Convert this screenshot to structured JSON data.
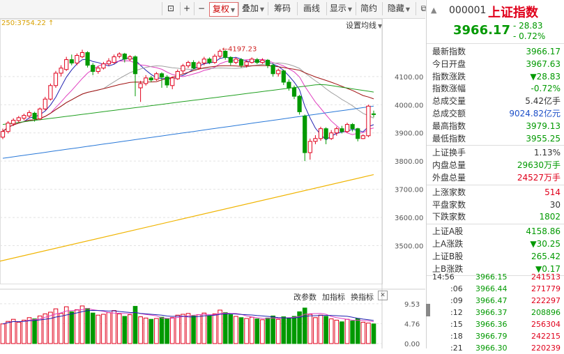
{
  "toolbar": {
    "items": [
      {
        "label": "⊡",
        "has_caret": false,
        "selected": false
      },
      {
        "label": "+",
        "has_caret": false,
        "selected": false
      },
      {
        "label": "−",
        "has_caret": false,
        "selected": false
      },
      {
        "label": "复权",
        "has_caret": true,
        "selected": true
      },
      {
        "label": "叠加",
        "has_caret": true,
        "selected": false
      },
      {
        "label": "筹码",
        "has_caret": false,
        "selected": false
      },
      {
        "label": "画线",
        "has_caret": false,
        "selected": false
      },
      {
        "label": "显示",
        "has_caret": true,
        "selected": false
      },
      {
        "label": "简约",
        "has_caret": false,
        "selected": false
      },
      {
        "label": "隐藏",
        "has_caret": true,
        "selected": false
      },
      {
        "label": "⧉",
        "has_caret": false,
        "selected": false
      }
    ]
  },
  "ma_label": "250:3754.22 ↑",
  "ma_settings_label": "设置均线",
  "peak_annotation": "←4197.23",
  "indicator_links": {
    "edit_params": "改参数",
    "add_indicator": "加指标",
    "switch_indicator": "换指标"
  },
  "close_icon": "✕",
  "scroll_up_icon": "▲",
  "scroll_down_icon": "▼",
  "colors": {
    "up": "#e0001b",
    "down": "#009900",
    "ma5": "#2020b0",
    "ma10": "#e040c0",
    "ma20": "#a0a0a0",
    "ma30": "#a01010",
    "ma60": "#20a020",
    "ma120": "#2878d8",
    "ma250": "#f0b400"
  },
  "chart_data": {
    "type": "candlestick",
    "price_axis": {
      "ticks": [
        4100.0,
        4000.0,
        3900.0,
        3800.0,
        3700.0,
        3600.0,
        3500.0
      ],
      "ylim": [
        3390,
        4290
      ]
    },
    "volume_axis": {
      "ticks": [
        "9.53",
        "4.76",
        "0.00"
      ],
      "unit": "百万",
      "ylim": [
        0,
        10.5
      ]
    },
    "candles": [
      {
        "o": 3885,
        "c": 3905,
        "h": 3915,
        "l": 3878,
        "v": 4.7
      },
      {
        "o": 3905,
        "c": 3935,
        "h": 3942,
        "l": 3898,
        "v": 5.3
      },
      {
        "o": 3932,
        "c": 3945,
        "h": 3952,
        "l": 3925,
        "v": 5.8
      },
      {
        "o": 3944,
        "c": 3954,
        "h": 3960,
        "l": 3938,
        "v": 5.1
      },
      {
        "o": 3952,
        "c": 3962,
        "h": 3968,
        "l": 3945,
        "v": 5.6
      },
      {
        "o": 3960,
        "c": 3972,
        "h": 3980,
        "l": 3952,
        "v": 6.2
      },
      {
        "o": 3970,
        "c": 3950,
        "h": 3975,
        "l": 3940,
        "v": 5.9
      },
      {
        "o": 3950,
        "c": 3985,
        "h": 3990,
        "l": 3945,
        "v": 6.6
      },
      {
        "o": 3985,
        "c": 4020,
        "h": 4028,
        "l": 3980,
        "v": 7.1
      },
      {
        "o": 4020,
        "c": 4068,
        "h": 4075,
        "l": 4015,
        "v": 7.5
      },
      {
        "o": 4068,
        "c": 4112,
        "h": 4120,
        "l": 4060,
        "v": 8.3
      },
      {
        "o": 4112,
        "c": 4130,
        "h": 4140,
        "l": 4100,
        "v": 7.2
      },
      {
        "o": 4125,
        "c": 4160,
        "h": 4170,
        "l": 4120,
        "v": 8.8
      },
      {
        "o": 4160,
        "c": 4148,
        "h": 4178,
        "l": 4140,
        "v": 7.6
      },
      {
        "o": 4148,
        "c": 4175,
        "h": 4182,
        "l": 4140,
        "v": 8.1
      },
      {
        "o": 4170,
        "c": 4185,
        "h": 4195,
        "l": 4165,
        "v": 9.0
      },
      {
        "o": 4185,
        "c": 4140,
        "h": 4190,
        "l": 4132,
        "v": 8.4
      },
      {
        "o": 4140,
        "c": 4118,
        "h": 4148,
        "l": 4105,
        "v": 7.3
      },
      {
        "o": 4118,
        "c": 4130,
        "h": 4138,
        "l": 4110,
        "v": 6.8
      },
      {
        "o": 4130,
        "c": 4145,
        "h": 4152,
        "l": 4125,
        "v": 7.0
      },
      {
        "o": 4145,
        "c": 4155,
        "h": 4165,
        "l": 4138,
        "v": 7.4
      },
      {
        "o": 4150,
        "c": 4170,
        "h": 4178,
        "l": 4145,
        "v": 7.9
      },
      {
        "o": 4172,
        "c": 4180,
        "h": 4186,
        "l": 4165,
        "v": 7.1
      },
      {
        "o": 4180,
        "c": 4162,
        "h": 4184,
        "l": 4150,
        "v": 6.5
      },
      {
        "o": 4162,
        "c": 4170,
        "h": 4176,
        "l": 4155,
        "v": 6.9
      },
      {
        "o": 4170,
        "c": 4110,
        "h": 4175,
        "l": 4030,
        "v": 8.9
      },
      {
        "o": 4060,
        "c": 4075,
        "h": 4085,
        "l": 4010,
        "v": 6.4
      },
      {
        "o": 4075,
        "c": 4095,
        "h": 4105,
        "l": 4068,
        "v": 6.1
      },
      {
        "o": 4095,
        "c": 4088,
        "h": 4102,
        "l": 4080,
        "v": 5.8
      },
      {
        "o": 4090,
        "c": 4110,
        "h": 4116,
        "l": 4085,
        "v": 6.0
      },
      {
        "o": 4110,
        "c": 4098,
        "h": 4115,
        "l": 4060,
        "v": 6.3
      },
      {
        "o": 4098,
        "c": 4070,
        "h": 4105,
        "l": 4060,
        "v": 5.9
      },
      {
        "o": 4068,
        "c": 4095,
        "h": 4100,
        "l": 4055,
        "v": 6.2
      },
      {
        "o": 4092,
        "c": 4118,
        "h": 4125,
        "l": 4088,
        "v": 6.8
      },
      {
        "o": 4120,
        "c": 4138,
        "h": 4145,
        "l": 4110,
        "v": 7.0
      },
      {
        "o": 4138,
        "c": 4150,
        "h": 4156,
        "l": 4130,
        "v": 7.2
      },
      {
        "o": 4150,
        "c": 4130,
        "h": 4158,
        "l": 4125,
        "v": 6.6
      },
      {
        "o": 4130,
        "c": 4148,
        "h": 4155,
        "l": 4124,
        "v": 6.9
      },
      {
        "o": 4148,
        "c": 4162,
        "h": 4170,
        "l": 4140,
        "v": 7.3
      },
      {
        "o": 4162,
        "c": 4150,
        "h": 4168,
        "l": 4144,
        "v": 6.7
      },
      {
        "o": 4150,
        "c": 4172,
        "h": 4180,
        "l": 4145,
        "v": 7.1
      },
      {
        "o": 4172,
        "c": 4190,
        "h": 4197,
        "l": 4165,
        "v": 8.0
      },
      {
        "o": 4190,
        "c": 4168,
        "h": 4194,
        "l": 4160,
        "v": 7.4
      },
      {
        "o": 4168,
        "c": 4150,
        "h": 4172,
        "l": 4140,
        "v": 6.9
      },
      {
        "o": 4150,
        "c": 4162,
        "h": 4168,
        "l": 4144,
        "v": 6.5
      },
      {
        "o": 4160,
        "c": 4140,
        "h": 4165,
        "l": 4132,
        "v": 6.2
      },
      {
        "o": 4140,
        "c": 4152,
        "h": 4158,
        "l": 4132,
        "v": 6.0
      },
      {
        "o": 4150,
        "c": 4162,
        "h": 4168,
        "l": 4146,
        "v": 6.3
      },
      {
        "o": 4160,
        "c": 4150,
        "h": 4166,
        "l": 4144,
        "v": 5.9
      },
      {
        "o": 4150,
        "c": 4158,
        "h": 4165,
        "l": 4145,
        "v": 5.7
      },
      {
        "o": 4158,
        "c": 4140,
        "h": 4162,
        "l": 4130,
        "v": 6.1
      },
      {
        "o": 4140,
        "c": 4110,
        "h": 4145,
        "l": 4100,
        "v": 6.6
      },
      {
        "o": 4110,
        "c": 4122,
        "h": 4128,
        "l": 4100,
        "v": 5.8
      },
      {
        "o": 4120,
        "c": 4080,
        "h": 4124,
        "l": 4070,
        "v": 6.4
      },
      {
        "o": 4080,
        "c": 4060,
        "h": 4090,
        "l": 4050,
        "v": 6.0
      },
      {
        "o": 4060,
        "c": 4030,
        "h": 4068,
        "l": 4020,
        "v": 6.5
      },
      {
        "o": 4030,
        "c": 3975,
        "h": 4035,
        "l": 3965,
        "v": 7.6
      },
      {
        "o": 3960,
        "c": 3830,
        "h": 3965,
        "l": 3800,
        "v": 8.5
      },
      {
        "o": 3830,
        "c": 3870,
        "h": 3880,
        "l": 3805,
        "v": 7.0
      },
      {
        "o": 3870,
        "c": 3880,
        "h": 3892,
        "l": 3860,
        "v": 6.2
      },
      {
        "o": 3880,
        "c": 3915,
        "h": 3922,
        "l": 3872,
        "v": 6.8
      },
      {
        "o": 3915,
        "c": 3880,
        "h": 3920,
        "l": 3860,
        "v": 6.5
      },
      {
        "o": 3880,
        "c": 3900,
        "h": 3910,
        "l": 3875,
        "v": 5.9
      },
      {
        "o": 3900,
        "c": 3915,
        "h": 3922,
        "l": 3890,
        "v": 5.6
      },
      {
        "o": 3915,
        "c": 3905,
        "h": 3925,
        "l": 3898,
        "v": 5.2
      },
      {
        "o": 3905,
        "c": 3930,
        "h": 3936,
        "l": 3900,
        "v": 5.8
      },
      {
        "o": 3930,
        "c": 3915,
        "h": 3935,
        "l": 3905,
        "v": 5.4
      },
      {
        "o": 3915,
        "c": 3880,
        "h": 3918,
        "l": 3870,
        "v": 6.0
      },
      {
        "o": 3880,
        "c": 3890,
        "h": 3895,
        "l": 3878,
        "v": 5.1
      },
      {
        "o": 3890,
        "c": 3995,
        "h": 4000,
        "l": 3885,
        "v": 4.9
      },
      {
        "o": 3967.63,
        "c": 3966.17,
        "h": 3979.13,
        "l": 3955.25,
        "v": 4.7
      }
    ]
  },
  "panel": {
    "code": "000001",
    "name": "上证指数",
    "price": "3966.17",
    "change": "- 28.83",
    "change_pct": "- 0.72%",
    "stats": [
      {
        "label": "最新指数",
        "value": "3966.17",
        "cls": "green"
      },
      {
        "label": "今日开盘",
        "value": "3967.63",
        "cls": "green"
      },
      {
        "label": "指数涨跌",
        "value": "▼28.83",
        "cls": "green"
      },
      {
        "label": "指数涨幅",
        "value": "-0.72%",
        "cls": "green"
      },
      {
        "label": "总成交量",
        "value": "5.42亿手",
        "cls": "dark"
      },
      {
        "label": "总成交额",
        "value": "9024.82亿元",
        "cls": "blue"
      },
      {
        "label": "最高指数",
        "value": "3979.13",
        "cls": "green"
      },
      {
        "label": "最低指数",
        "value": "3955.25",
        "cls": "green"
      }
    ],
    "stats2": [
      {
        "label": "上证换手",
        "value": "1.13%",
        "cls": "dark"
      },
      {
        "label": "内盘总量",
        "value": "29630万手",
        "cls": "green"
      },
      {
        "label": "外盘总量",
        "value": "24527万手",
        "cls": "red"
      }
    ],
    "stats3": [
      {
        "label": "上涨家数",
        "value": "514",
        "cls": "red"
      },
      {
        "label": "平盘家数",
        "value": "30",
        "cls": "dark"
      },
      {
        "label": "下跌家数",
        "value": "1802",
        "cls": "green"
      }
    ],
    "stats4": [
      {
        "label": "上证A股",
        "value": "4158.86",
        "cls": "green"
      },
      {
        "label": "上A涨跌",
        "value": "▼30.25",
        "cls": "green"
      },
      {
        "label": "上证B股",
        "value": "265.42",
        "cls": "green"
      },
      {
        "label": "上B涨跌",
        "value": "▼0.17",
        "cls": "green"
      }
    ],
    "ticks": [
      {
        "time": "14:56",
        "price": "3966.15",
        "vol": "241513"
      },
      {
        "time": ":06",
        "price": "3966.44",
        "vol": "271779"
      },
      {
        "time": ":09",
        "price": "3966.47",
        "vol": "222297"
      },
      {
        "time": ":12",
        "price": "3966.37",
        "vol": "208896"
      },
      {
        "time": ":15",
        "price": "3966.36",
        "vol": "256304"
      },
      {
        "time": ":18",
        "price": "3966.79",
        "vol": "242215"
      },
      {
        "time": ":21",
        "price": "3966.30",
        "vol": "220239"
      }
    ]
  }
}
